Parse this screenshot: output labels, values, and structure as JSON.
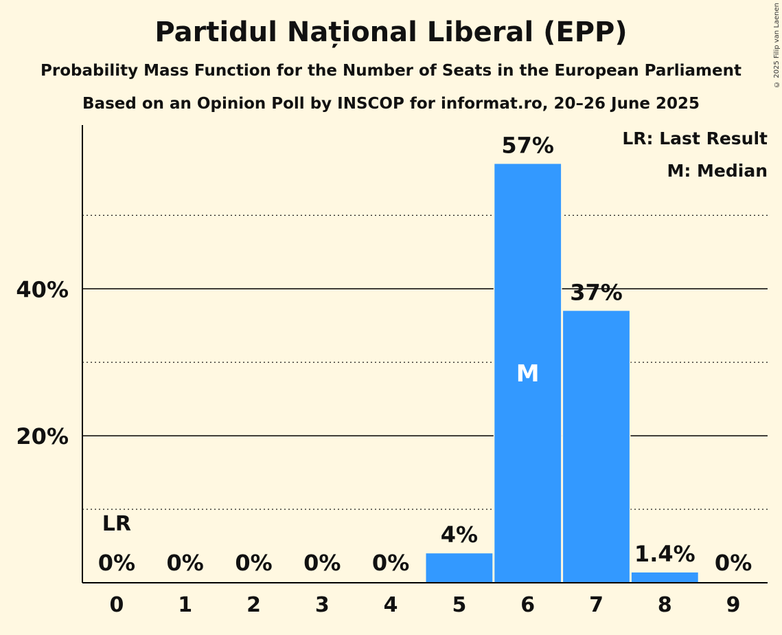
{
  "title": "Partidul Național Liberal (EPP)",
  "subtitle": "Probability Mass Function for the Number of Seats in the European Parliament",
  "source": "Based on an Opinion Poll by INSCOP for informat.ro, 20–26 June 2025",
  "copyright": "© 2025 Filip van Laenen",
  "legend": {
    "last_result": "LR: Last Result",
    "median": "M: Median"
  },
  "colors": {
    "background": "#fff8e1",
    "bar": "#3399ff",
    "axis": "#000000"
  },
  "chart_data": {
    "type": "bar",
    "categories": [
      "0",
      "1",
      "2",
      "3",
      "4",
      "5",
      "6",
      "7",
      "8",
      "9"
    ],
    "values": [
      0,
      0,
      0,
      0,
      0,
      4,
      57,
      37,
      1.4,
      0
    ],
    "value_labels": [
      "0%",
      "0%",
      "0%",
      "0%",
      "0%",
      "4%",
      "57%",
      "37%",
      "1.4%",
      "0%"
    ],
    "title": "Partidul Național Liberal (EPP)",
    "xlabel": "",
    "ylabel": "",
    "ylim": [
      0,
      62
    ],
    "yticks": [
      20,
      40
    ],
    "ytick_labels": [
      "20%",
      "40%"
    ],
    "minor_gridlines": [
      10,
      30,
      50
    ],
    "last_result_index": 0,
    "last_result_marker": "LR",
    "median_index": 6,
    "median_marker": "M",
    "legend_position": "top-right"
  }
}
